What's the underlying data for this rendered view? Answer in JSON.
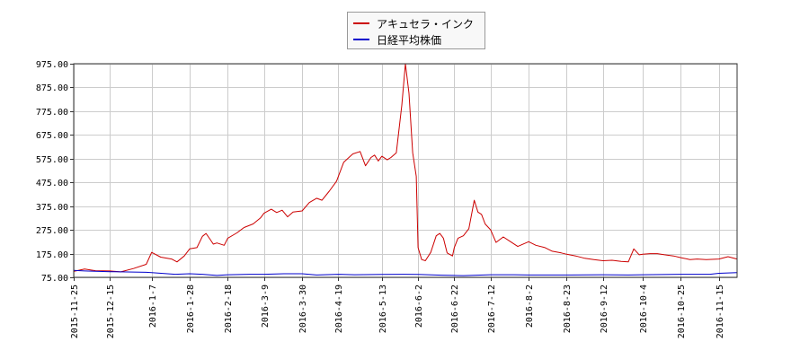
{
  "chart_data": {
    "type": "line",
    "title": "",
    "xlabel": "",
    "ylabel": "",
    "ylim": [
      75,
      975
    ],
    "yticks": [
      "975.00",
      "875.00",
      "775.00",
      "675.00",
      "575.00",
      "475.00",
      "375.00",
      "275.00",
      "175.00",
      "75.00"
    ],
    "ytick_values": [
      975,
      875,
      775,
      675,
      575,
      475,
      375,
      275,
      175,
      75
    ],
    "xlim": [
      "2015-11-25",
      "2016-11-25"
    ],
    "xticks": [
      "2015-11-25",
      "2015-12-15",
      "2016-1-7",
      "2016-1-28",
      "2016-2-18",
      "2016-3-9",
      "2016-3-30",
      "2016-4-19",
      "2016-5-13",
      "2016-6-2",
      "2016-6-22",
      "2016-7-12",
      "2016-8-2",
      "2016-8-23",
      "2016-9-12",
      "2016-10-4",
      "2016-10-25",
      "2016-11-15"
    ],
    "xtick_dates": [
      "2015-11-25",
      "2015-12-15",
      "2016-01-07",
      "2016-01-28",
      "2016-02-18",
      "2016-03-09",
      "2016-03-30",
      "2016-04-19",
      "2016-05-13",
      "2016-06-02",
      "2016-06-22",
      "2016-07-12",
      "2016-08-02",
      "2016-08-23",
      "2016-09-12",
      "2016-10-04",
      "2016-10-25",
      "2016-11-15"
    ],
    "grid": true,
    "legend_position": "top-center",
    "series": [
      {
        "name": "アキュセラ・インク",
        "color": "#cc0000",
        "points": [
          [
            "2015-11-25",
            100
          ],
          [
            "2015-12-01",
            110
          ],
          [
            "2015-12-07",
            103
          ],
          [
            "2015-12-15",
            102
          ],
          [
            "2015-12-21",
            98
          ],
          [
            "2015-12-28",
            112
          ],
          [
            "2016-01-04",
            130
          ],
          [
            "2016-01-07",
            180
          ],
          [
            "2016-01-12",
            160
          ],
          [
            "2016-01-18",
            152
          ],
          [
            "2016-01-21",
            140
          ],
          [
            "2016-01-25",
            165
          ],
          [
            "2016-01-28",
            195
          ],
          [
            "2016-02-01",
            200
          ],
          [
            "2016-02-04",
            248
          ],
          [
            "2016-02-06",
            260
          ],
          [
            "2016-02-08",
            238
          ],
          [
            "2016-02-10",
            215
          ],
          [
            "2016-02-12",
            220
          ],
          [
            "2016-02-16",
            210
          ],
          [
            "2016-02-18",
            240
          ],
          [
            "2016-02-23",
            262
          ],
          [
            "2016-02-27",
            285
          ],
          [
            "2016-03-03",
            300
          ],
          [
            "2016-03-07",
            325
          ],
          [
            "2016-03-09",
            345
          ],
          [
            "2016-03-13",
            362
          ],
          [
            "2016-03-16",
            348
          ],
          [
            "2016-03-19",
            358
          ],
          [
            "2016-03-22",
            330
          ],
          [
            "2016-03-25",
            350
          ],
          [
            "2016-03-30",
            355
          ],
          [
            "2016-04-03",
            390
          ],
          [
            "2016-04-07",
            408
          ],
          [
            "2016-04-10",
            400
          ],
          [
            "2016-04-14",
            438
          ],
          [
            "2016-04-18",
            480
          ],
          [
            "2016-04-19",
            500
          ],
          [
            "2016-04-22",
            560
          ],
          [
            "2016-04-27",
            595
          ],
          [
            "2016-05-01",
            605
          ],
          [
            "2016-05-04",
            545
          ],
          [
            "2016-05-07",
            580
          ],
          [
            "2016-05-09",
            590
          ],
          [
            "2016-05-11",
            565
          ],
          [
            "2016-05-13",
            585
          ],
          [
            "2016-05-16",
            570
          ],
          [
            "2016-05-18",
            580
          ],
          [
            "2016-05-21",
            600
          ],
          [
            "2016-05-24",
            800
          ],
          [
            "2016-05-26",
            975
          ],
          [
            "2016-05-28",
            850
          ],
          [
            "2016-05-30",
            600
          ],
          [
            "2016-06-01",
            500
          ],
          [
            "2016-06-02",
            200
          ],
          [
            "2016-06-04",
            150
          ],
          [
            "2016-06-06",
            145
          ],
          [
            "2016-06-09",
            180
          ],
          [
            "2016-06-12",
            250
          ],
          [
            "2016-06-14",
            260
          ],
          [
            "2016-06-16",
            240
          ],
          [
            "2016-06-18",
            178
          ],
          [
            "2016-06-21",
            165
          ],
          [
            "2016-06-22",
            200
          ],
          [
            "2016-06-24",
            240
          ],
          [
            "2016-06-27",
            250
          ],
          [
            "2016-06-30",
            280
          ],
          [
            "2016-07-03",
            400
          ],
          [
            "2016-07-05",
            350
          ],
          [
            "2016-07-07",
            340
          ],
          [
            "2016-07-09",
            300
          ],
          [
            "2016-07-12",
            275
          ],
          [
            "2016-07-15",
            222
          ],
          [
            "2016-07-19",
            245
          ],
          [
            "2016-07-23",
            225
          ],
          [
            "2016-07-27",
            205
          ],
          [
            "2016-08-02",
            225
          ],
          [
            "2016-08-06",
            210
          ],
          [
            "2016-08-11",
            200
          ],
          [
            "2016-08-15",
            185
          ],
          [
            "2016-08-20",
            178
          ],
          [
            "2016-08-23",
            172
          ],
          [
            "2016-08-28",
            165
          ],
          [
            "2016-09-02",
            155
          ],
          [
            "2016-09-07",
            150
          ],
          [
            "2016-09-12",
            145
          ],
          [
            "2016-09-17",
            147
          ],
          [
            "2016-09-22",
            142
          ],
          [
            "2016-09-26",
            140
          ],
          [
            "2016-09-29",
            195
          ],
          [
            "2016-10-02",
            170
          ],
          [
            "2016-10-04",
            172
          ],
          [
            "2016-10-08",
            175
          ],
          [
            "2016-10-12",
            175
          ],
          [
            "2016-10-16",
            170
          ],
          [
            "2016-10-21",
            165
          ],
          [
            "2016-10-25",
            158
          ],
          [
            "2016-10-30",
            150
          ],
          [
            "2016-11-03",
            152
          ],
          [
            "2016-11-08",
            150
          ],
          [
            "2016-11-15",
            152
          ],
          [
            "2016-11-20",
            162
          ],
          [
            "2016-11-25",
            152
          ]
        ]
      },
      {
        "name": "日経平均株価",
        "color": "#0000cc",
        "points": [
          [
            "2015-11-25",
            104
          ],
          [
            "2015-12-01",
            102
          ],
          [
            "2015-12-15",
            99
          ],
          [
            "2016-01-04",
            96
          ],
          [
            "2016-01-07",
            95
          ],
          [
            "2016-01-20",
            88
          ],
          [
            "2016-01-28",
            90
          ],
          [
            "2016-02-04",
            88
          ],
          [
            "2016-02-12",
            83
          ],
          [
            "2016-02-18",
            86
          ],
          [
            "2016-03-01",
            88
          ],
          [
            "2016-03-09",
            88
          ],
          [
            "2016-03-20",
            90
          ],
          [
            "2016-03-30",
            90
          ],
          [
            "2016-04-07",
            85
          ],
          [
            "2016-04-19",
            88
          ],
          [
            "2016-04-28",
            86
          ],
          [
            "2016-05-13",
            87
          ],
          [
            "2016-05-25",
            88
          ],
          [
            "2016-06-02",
            87
          ],
          [
            "2016-06-15",
            84
          ],
          [
            "2016-06-22",
            83
          ],
          [
            "2016-06-27",
            82
          ],
          [
            "2016-07-12",
            86
          ],
          [
            "2016-07-25",
            86
          ],
          [
            "2016-08-02",
            85
          ],
          [
            "2016-08-23",
            85
          ],
          [
            "2016-09-12",
            86
          ],
          [
            "2016-09-26",
            85
          ],
          [
            "2016-10-04",
            86
          ],
          [
            "2016-10-25",
            88
          ],
          [
            "2016-11-10",
            88
          ],
          [
            "2016-11-15",
            92
          ],
          [
            "2016-11-25",
            95
          ]
        ]
      }
    ]
  }
}
